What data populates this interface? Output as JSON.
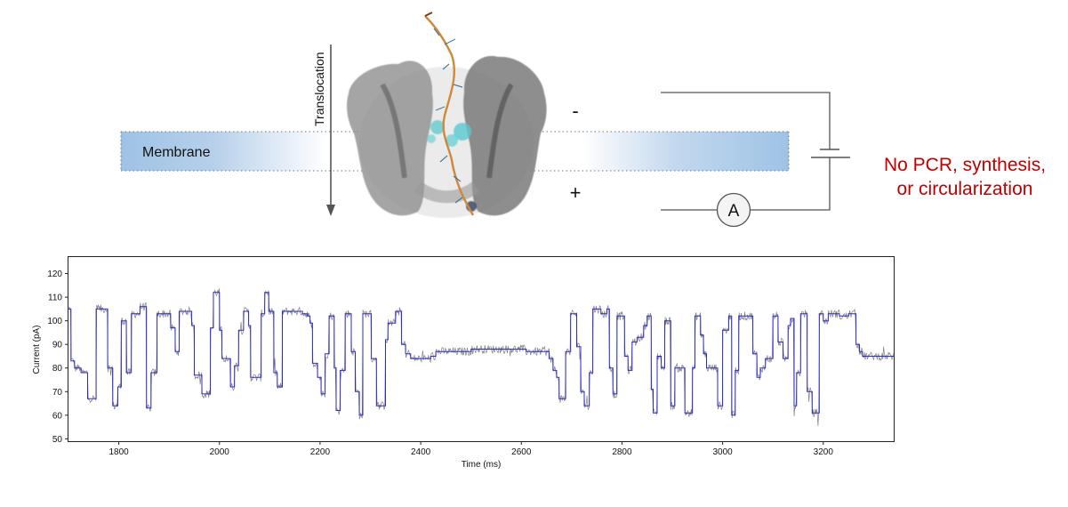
{
  "diagram": {
    "membrane_label": "Membrane",
    "translocation_label": "Translocation",
    "minus_sign": "-",
    "plus_sign": "+",
    "ammeter_label": "A",
    "note": [
      "No PCR, synthesis,",
      "or circularization"
    ],
    "colors": {
      "membrane": "#9ec2e6",
      "note": "#c00000",
      "dna_strand": "#d0883a",
      "protein": "#6e6e6e",
      "highlight": "#59c8cf"
    }
  },
  "chart_data": {
    "type": "line",
    "xlabel": "Time (ms)",
    "ylabel": "Current (pA)",
    "xlim": [
      1700,
      3340
    ],
    "ylim": [
      49,
      127
    ],
    "xticks": [
      1800,
      2000,
      2200,
      2400,
      2600,
      2800,
      3000,
      3200
    ],
    "yticks": [
      50,
      60,
      70,
      80,
      90,
      100,
      110,
      120
    ],
    "grid": false,
    "series": [
      {
        "role": "raw-signal",
        "color": "#808080",
        "noise": 1.8
      },
      {
        "role": "step-fit",
        "color": "#2b2bcc",
        "segments": [
          [
            1700,
            105
          ],
          [
            1705,
            83
          ],
          [
            1712,
            80
          ],
          [
            1725,
            78
          ],
          [
            1738,
            67
          ],
          [
            1755,
            105
          ],
          [
            1778,
            80
          ],
          [
            1788,
            64
          ],
          [
            1798,
            72
          ],
          [
            1805,
            100
          ],
          [
            1815,
            78
          ],
          [
            1825,
            103
          ],
          [
            1842,
            106
          ],
          [
            1855,
            63
          ],
          [
            1864,
            78
          ],
          [
            1876,
            103
          ],
          [
            1903,
            97
          ],
          [
            1912,
            87
          ],
          [
            1920,
            104
          ],
          [
            1945,
            98
          ],
          [
            1950,
            77
          ],
          [
            1965,
            69
          ],
          [
            1982,
            97
          ],
          [
            1988,
            112
          ],
          [
            2000,
            96
          ],
          [
            2005,
            84
          ],
          [
            2022,
            72
          ],
          [
            2030,
            81
          ],
          [
            2038,
            96
          ],
          [
            2048,
            104
          ],
          [
            2058,
            98
          ],
          [
            2062,
            76
          ],
          [
            2083,
            103
          ],
          [
            2090,
            112
          ],
          [
            2098,
            104
          ],
          [
            2108,
            78
          ],
          [
            2115,
            72
          ],
          [
            2125,
            104
          ],
          [
            2165,
            103
          ],
          [
            2175,
            102
          ],
          [
            2180,
            99
          ],
          [
            2185,
            82
          ],
          [
            2195,
            76
          ],
          [
            2202,
            69
          ],
          [
            2210,
            86
          ],
          [
            2218,
            102
          ],
          [
            2228,
            80
          ],
          [
            2232,
            62
          ],
          [
            2240,
            79
          ],
          [
            2250,
            103
          ],
          [
            2262,
            87
          ],
          [
            2270,
            70
          ],
          [
            2278,
            60
          ],
          [
            2285,
            103
          ],
          [
            2302,
            84
          ],
          [
            2312,
            64
          ],
          [
            2330,
            92
          ],
          [
            2335,
            99
          ],
          [
            2350,
            104
          ],
          [
            2362,
            90
          ],
          [
            2370,
            86
          ],
          [
            2380,
            84
          ],
          [
            2420,
            85
          ],
          [
            2430,
            87
          ],
          [
            2500,
            88
          ],
          [
            2610,
            87
          ],
          [
            2655,
            84
          ],
          [
            2663,
            79
          ],
          [
            2670,
            76
          ],
          [
            2675,
            67
          ],
          [
            2688,
            87
          ],
          [
            2698,
            103
          ],
          [
            2710,
            89
          ],
          [
            2718,
            70
          ],
          [
            2725,
            64
          ],
          [
            2735,
            78
          ],
          [
            2742,
            105
          ],
          [
            2758,
            103
          ],
          [
            2770,
            105
          ],
          [
            2775,
            80
          ],
          [
            2782,
            69
          ],
          [
            2790,
            102
          ],
          [
            2805,
            85
          ],
          [
            2812,
            79
          ],
          [
            2820,
            91
          ],
          [
            2830,
            93
          ],
          [
            2843,
            98
          ],
          [
            2850,
            102
          ],
          [
            2858,
            71
          ],
          [
            2862,
            61
          ],
          [
            2870,
            85
          ],
          [
            2878,
            80
          ],
          [
            2885,
            100
          ],
          [
            2897,
            64
          ],
          [
            2905,
            80
          ],
          [
            2925,
            61
          ],
          [
            2940,
            80
          ],
          [
            2945,
            102
          ],
          [
            2956,
            94
          ],
          [
            2962,
            86
          ],
          [
            2968,
            80
          ],
          [
            2975,
            80
          ],
          [
            2990,
            64
          ],
          [
            3000,
            96
          ],
          [
            3012,
            102
          ],
          [
            3018,
            60
          ],
          [
            3025,
            79
          ],
          [
            3032,
            102
          ],
          [
            3060,
            86
          ],
          [
            3068,
            76
          ],
          [
            3075,
            80
          ],
          [
            3085,
            84
          ],
          [
            3100,
            102
          ],
          [
            3110,
            91
          ],
          [
            3120,
            84
          ],
          [
            3130,
            98
          ],
          [
            3135,
            101
          ],
          [
            3142,
            64
          ],
          [
            3147,
            78
          ],
          [
            3155,
            103
          ],
          [
            3168,
            70
          ],
          [
            3178,
            61
          ],
          [
            3192,
            103
          ],
          [
            3200,
            100
          ],
          [
            3210,
            103
          ],
          [
            3232,
            102
          ],
          [
            3250,
            103
          ],
          [
            3265,
            90
          ],
          [
            3272,
            87
          ],
          [
            3278,
            85
          ],
          [
            3340,
            85
          ]
        ]
      }
    ]
  }
}
